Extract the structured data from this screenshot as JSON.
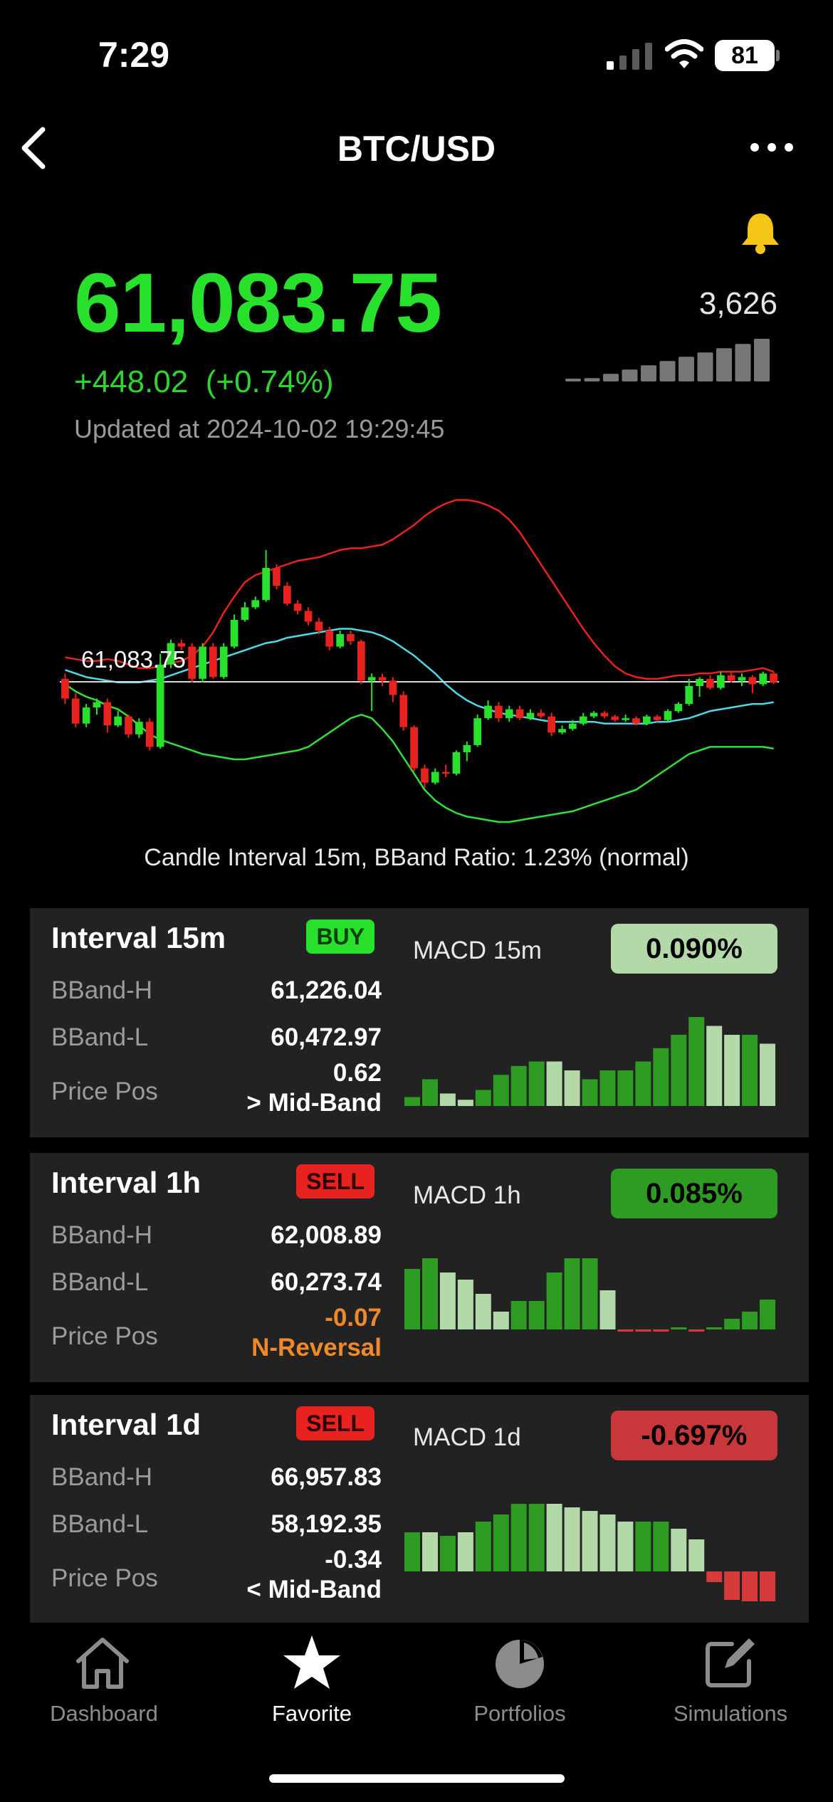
{
  "status_bar": {
    "time": "7:29",
    "battery": "81"
  },
  "header": {
    "title": "BTC/USD"
  },
  "quote": {
    "price": "61,083.75",
    "change": "+448.02  (+0.74%)",
    "updated": "Updated at 2024-10-02 19:29:45",
    "volume": "3,626"
  },
  "chart": {
    "price_label": "61,083.75",
    "caption": "Candle Interval 15m, BBand Ratio: 1.23% (normal)"
  },
  "chart_data": {
    "type": "candlestick",
    "interval": "15m",
    "current_price": 61083.75,
    "candles": [
      {
        "o": 61100,
        "c": 60990,
        "h": 61130,
        "l": 60960
      },
      {
        "o": 60990,
        "c": 60850,
        "h": 61020,
        "l": 60830
      },
      {
        "o": 60850,
        "c": 60940,
        "h": 60960,
        "l": 60830
      },
      {
        "o": 60940,
        "c": 60970,
        "h": 60990,
        "l": 60900
      },
      {
        "o": 60970,
        "c": 60840,
        "h": 60990,
        "l": 60800
      },
      {
        "o": 60840,
        "c": 60890,
        "h": 60920,
        "l": 60830
      },
      {
        "o": 60890,
        "c": 60790,
        "h": 60900,
        "l": 60770
      },
      {
        "o": 60790,
        "c": 60860,
        "h": 60880,
        "l": 60770
      },
      {
        "o": 60860,
        "c": 60720,
        "h": 60880,
        "l": 60700
      },
      {
        "o": 60720,
        "c": 61180,
        "h": 61240,
        "l": 60710
      },
      {
        "o": 61180,
        "c": 61300,
        "h": 61320,
        "l": 61160
      },
      {
        "o": 61300,
        "c": 61280,
        "h": 61320,
        "l": 61260
      },
      {
        "o": 61280,
        "c": 61100,
        "h": 61300,
        "l": 61080
      },
      {
        "o": 61100,
        "c": 61280,
        "h": 61300,
        "l": 61080
      },
      {
        "o": 61280,
        "c": 61110,
        "h": 61300,
        "l": 61100
      },
      {
        "o": 61110,
        "c": 61280,
        "h": 61300,
        "l": 61100
      },
      {
        "o": 61280,
        "c": 61430,
        "h": 61460,
        "l": 61270
      },
      {
        "o": 61430,
        "c": 61500,
        "h": 61530,
        "l": 61420
      },
      {
        "o": 61500,
        "c": 61540,
        "h": 61560,
        "l": 61490
      },
      {
        "o": 61540,
        "c": 61720,
        "h": 61820,
        "l": 61530
      },
      {
        "o": 61720,
        "c": 61620,
        "h": 61740,
        "l": 61600
      },
      {
        "o": 61620,
        "c": 61520,
        "h": 61640,
        "l": 61510
      },
      {
        "o": 61520,
        "c": 61480,
        "h": 61540,
        "l": 61460
      },
      {
        "o": 61480,
        "c": 61420,
        "h": 61500,
        "l": 61400
      },
      {
        "o": 61420,
        "c": 61370,
        "h": 61440,
        "l": 61350
      },
      {
        "o": 61370,
        "c": 61280,
        "h": 61390,
        "l": 61260
      },
      {
        "o": 61280,
        "c": 61350,
        "h": 61370,
        "l": 61270
      },
      {
        "o": 61350,
        "c": 61310,
        "h": 61370,
        "l": 61290
      },
      {
        "o": 61310,
        "c": 61090,
        "h": 61320,
        "l": 61070
      },
      {
        "o": 61090,
        "c": 61110,
        "h": 61130,
        "l": 60920
      },
      {
        "o": 61110,
        "c": 61090,
        "h": 61130,
        "l": 61060
      },
      {
        "o": 61090,
        "c": 61010,
        "h": 61110,
        "l": 60970
      },
      {
        "o": 61010,
        "c": 60830,
        "h": 61030,
        "l": 60810
      },
      {
        "o": 60830,
        "c": 60600,
        "h": 60840,
        "l": 60580
      },
      {
        "o": 60600,
        "c": 60520,
        "h": 60620,
        "l": 60490
      },
      {
        "o": 60520,
        "c": 60580,
        "h": 60600,
        "l": 60510
      },
      {
        "o": 60580,
        "c": 60570,
        "h": 60620,
        "l": 60550
      },
      {
        "o": 60570,
        "c": 60690,
        "h": 60700,
        "l": 60560
      },
      {
        "o": 60690,
        "c": 60730,
        "h": 60750,
        "l": 60640
      },
      {
        "o": 60730,
        "c": 60880,
        "h": 60900,
        "l": 60720
      },
      {
        "o": 60880,
        "c": 60950,
        "h": 60980,
        "l": 60870
      },
      {
        "o": 60950,
        "c": 60880,
        "h": 60970,
        "l": 60860
      },
      {
        "o": 60880,
        "c": 60930,
        "h": 60950,
        "l": 60860
      },
      {
        "o": 60930,
        "c": 60880,
        "h": 60950,
        "l": 60870
      },
      {
        "o": 60880,
        "c": 60910,
        "h": 60930,
        "l": 60870
      },
      {
        "o": 60910,
        "c": 60890,
        "h": 60930,
        "l": 60880
      },
      {
        "o": 60890,
        "c": 60800,
        "h": 60910,
        "l": 60780
      },
      {
        "o": 60800,
        "c": 60820,
        "h": 60840,
        "l": 60790
      },
      {
        "o": 60820,
        "c": 60850,
        "h": 60870,
        "l": 60810
      },
      {
        "o": 60850,
        "c": 60890,
        "h": 60910,
        "l": 60840
      },
      {
        "o": 60890,
        "c": 60910,
        "h": 60920,
        "l": 60880
      },
      {
        "o": 60910,
        "c": 60890,
        "h": 60920,
        "l": 60880
      },
      {
        "o": 60890,
        "c": 60870,
        "h": 60900,
        "l": 60860
      },
      {
        "o": 60870,
        "c": 60880,
        "h": 60900,
        "l": 60860
      },
      {
        "o": 60880,
        "c": 60850,
        "h": 60890,
        "l": 60840
      },
      {
        "o": 60850,
        "c": 60890,
        "h": 60900,
        "l": 60840
      },
      {
        "o": 60890,
        "c": 60870,
        "h": 60900,
        "l": 60860
      },
      {
        "o": 60870,
        "c": 60920,
        "h": 60930,
        "l": 60860
      },
      {
        "o": 60920,
        "c": 60960,
        "h": 60970,
        "l": 60910
      },
      {
        "o": 60960,
        "c": 61060,
        "h": 61100,
        "l": 60950
      },
      {
        "o": 61060,
        "c": 61100,
        "h": 61110,
        "l": 61000
      },
      {
        "o": 61100,
        "c": 61050,
        "h": 61120,
        "l": 61040
      },
      {
        "o": 61050,
        "c": 61120,
        "h": 61140,
        "l": 61040
      },
      {
        "o": 61120,
        "c": 61090,
        "h": 61140,
        "l": 61080
      },
      {
        "o": 61090,
        "c": 61110,
        "h": 61130,
        "l": 61060
      },
      {
        "o": 61110,
        "c": 61070,
        "h": 61120,
        "l": 61020
      },
      {
        "o": 61070,
        "c": 61130,
        "h": 61140,
        "l": 61060
      },
      {
        "o": 61130,
        "c": 61080,
        "h": 61140,
        "l": 61070
      }
    ],
    "bbands": {
      "upper": [
        61220,
        61210,
        61200,
        61200,
        61210,
        61200,
        61180,
        61160,
        61160,
        61170,
        61190,
        61200,
        61230,
        61280,
        61360,
        61470,
        61560,
        61640,
        61680,
        61700,
        61720,
        61740,
        61760,
        61770,
        61780,
        61800,
        61820,
        61830,
        61830,
        61840,
        61850,
        61880,
        61920,
        61960,
        62010,
        62050,
        62080,
        62100,
        62100,
        62090,
        62070,
        62040,
        61990,
        61920,
        61830,
        61740,
        61650,
        61560,
        61470,
        61380,
        61300,
        61230,
        61170,
        61130,
        61110,
        61100,
        61100,
        61110,
        61120,
        61120,
        61130,
        61130,
        61140,
        61140,
        61140,
        61150,
        61160,
        61140
      ],
      "middle": [
        61150,
        61130,
        61110,
        61100,
        61090,
        61080,
        61080,
        61080,
        61090,
        61100,
        61120,
        61140,
        61160,
        61180,
        61200,
        61220,
        61240,
        61260,
        61280,
        61300,
        61310,
        61330,
        61340,
        61350,
        61360,
        61370,
        61380,
        61380,
        61370,
        61360,
        61340,
        61310,
        61270,
        61230,
        61180,
        61130,
        61070,
        61020,
        60980,
        60950,
        60930,
        60910,
        60900,
        60890,
        60880,
        60870,
        60860,
        60860,
        60860,
        60860,
        60860,
        60850,
        60850,
        60850,
        60850,
        60850,
        60860,
        60860,
        60870,
        60880,
        60900,
        60920,
        60930,
        60940,
        60950,
        60960,
        60960,
        60970
      ],
      "lower": [
        61070,
        61030,
        61000,
        60980,
        60950,
        60930,
        60890,
        60840,
        60790,
        60760,
        60740,
        60720,
        60700,
        60680,
        60670,
        60660,
        60650,
        60650,
        60660,
        60670,
        60680,
        60690,
        60700,
        60720,
        60760,
        60800,
        60840,
        60880,
        60900,
        60880,
        60820,
        60750,
        60660,
        60570,
        60480,
        60420,
        60380,
        60350,
        60330,
        60320,
        60310,
        60300,
        60300,
        60310,
        60320,
        60330,
        60340,
        60350,
        60360,
        60380,
        60400,
        60420,
        60440,
        60460,
        60480,
        60520,
        60560,
        60600,
        60640,
        60680,
        60700,
        60720,
        60720,
        60720,
        60720,
        60720,
        60720,
        60710
      ]
    },
    "ylim": [
      60280,
      62110
    ]
  },
  "intervals": [
    {
      "title": "Interval 15m",
      "signal": "BUY",
      "signal_type": "buy",
      "bband_h_label": "BBand-H",
      "bband_h": "61,226.04",
      "bband_l_label": "BBand-L",
      "bband_l": "60,472.97",
      "pos_label": "Price Pos",
      "pos_value": "0.62",
      "pos_note": "> Mid-Band",
      "pos_color": "#ffffff",
      "macd_label": "MACD 15m",
      "macd_value": "0.090%",
      "macd_bg": "#b3d9a9",
      "macd_fg": "#000000",
      "macd_bars": [
        0.1,
        0.3,
        0.14,
        0.07,
        0.18,
        0.35,
        0.45,
        0.5,
        0.5,
        0.4,
        0.3,
        0.4,
        0.4,
        0.5,
        0.65,
        0.8,
        1.0,
        0.9,
        0.8,
        0.8,
        0.7
      ],
      "macd_bar_colors": [
        "#2e9b23",
        "#2e9b23",
        "#b3d9a9",
        "#b3d9a9",
        "#2e9b23",
        "#2e9b23",
        "#2e9b23",
        "#2e9b23",
        "#b3d9a9",
        "#b3d9a9",
        "#2e9b23",
        "#2e9b23",
        "#2e9b23",
        "#2e9b23",
        "#2e9b23",
        "#2e9b23",
        "#2e9b23",
        "#b3d9a9",
        "#b3d9a9",
        "#2e9b23",
        "#b3d9a9"
      ]
    },
    {
      "title": "Interval 1h",
      "signal": "SELL",
      "signal_type": "sell",
      "bband_h_label": "BBand-H",
      "bband_h": "62,008.89",
      "bband_l_label": "BBand-L",
      "bband_l": "60,273.74",
      "pos_label": "Price Pos",
      "pos_value": "-0.07",
      "pos_note": "N-Reversal",
      "pos_color": "#f0892a",
      "macd_label": "MACD 1h",
      "macd_value": "0.085%",
      "macd_bg": "#2e9b23",
      "macd_fg": "#000000",
      "macd_bars": [
        0.85,
        1.0,
        0.8,
        0.7,
        0.5,
        0.25,
        0.4,
        0.4,
        0.8,
        1.0,
        1.0,
        0.55,
        -0.03,
        -0.02,
        -0.02,
        0.02,
        -0.03,
        0.03,
        0.15,
        0.25,
        0.42
      ],
      "macd_bar_colors": [
        "#2e9b23",
        "#2e9b23",
        "#b3d9a9",
        "#b3d9a9",
        "#b3d9a9",
        "#b3d9a9",
        "#2e9b23",
        "#2e9b23",
        "#2e9b23",
        "#2e9b23",
        "#2e9b23",
        "#b3d9a9",
        "#d63a3a",
        "#d63a3a",
        "#d63a3a",
        "#2e9b23",
        "#d63a3a",
        "#2e9b23",
        "#2e9b23",
        "#2e9b23",
        "#2e9b23"
      ]
    },
    {
      "title": "Interval 1d",
      "signal": "SELL",
      "signal_type": "sell",
      "bband_h_label": "BBand-H",
      "bband_h": "66,957.83",
      "bband_l_label": "BBand-L",
      "bband_l": "58,192.35",
      "pos_label": "Price Pos",
      "pos_value": "-0.34",
      "pos_note": "< Mid-Band",
      "pos_color": "#ffffff",
      "macd_label": "MACD 1d",
      "macd_value": "-0.697%",
      "macd_bg": "#c8383a",
      "macd_fg": "#000000",
      "macd_bars": [
        0.55,
        0.55,
        0.5,
        0.55,
        0.7,
        0.8,
        0.95,
        0.95,
        0.95,
        0.9,
        0.85,
        0.8,
        0.7,
        0.7,
        0.7,
        0.6,
        0.45,
        -0.15,
        -0.4,
        -0.45,
        -0.55
      ],
      "macd_bar_colors": [
        "#2e9b23",
        "#b3d9a9",
        "#2e9b23",
        "#b3d9a9",
        "#2e9b23",
        "#2e9b23",
        "#2e9b23",
        "#2e9b23",
        "#b3d9a9",
        "#b3d9a9",
        "#b3d9a9",
        "#b3d9a9",
        "#b3d9a9",
        "#2e9b23",
        "#2e9b23",
        "#b3d9a9",
        "#b3d9a9",
        "#d63a3a",
        "#d63a3a",
        "#d63a3a",
        "#d63a3a"
      ]
    }
  ],
  "volume_bars": [
    0.05,
    0.08,
    0.18,
    0.28,
    0.38,
    0.48,
    0.58,
    0.68,
    0.78,
    0.88,
    1.0
  ],
  "tabs": [
    {
      "label": "Dashboard",
      "icon": "home-icon",
      "active": false
    },
    {
      "label": "Favorite",
      "icon": "star-icon",
      "active": true
    },
    {
      "label": "Portfolios",
      "icon": "pie-chart-icon",
      "active": false
    },
    {
      "label": "Simulations",
      "icon": "edit-icon",
      "active": false
    }
  ],
  "colors": {
    "up": "#28e12c",
    "down": "#e8231f",
    "upper_band": "#e8231f",
    "middle_band": "#4fd8e8",
    "lower_band": "#33e03a",
    "price_line": "#d8d8d8",
    "buy_bg": "#28e12c",
    "sell_bg": "#e8231f",
    "bell": "#f5c518"
  }
}
